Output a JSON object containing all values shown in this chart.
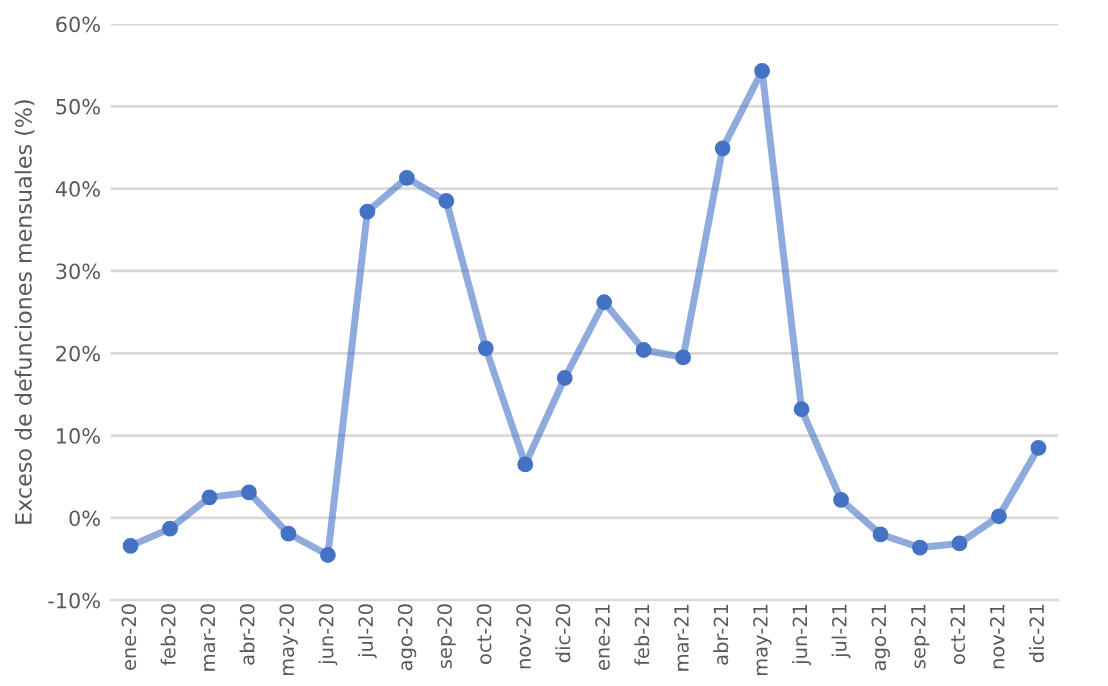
{
  "chart_data": {
    "type": "line",
    "ylabel": "Exceso de defunciones mensuales (%)",
    "categories": [
      "ene-20",
      "feb-20",
      "mar-20",
      "abr-20",
      "may-20",
      "jun-20",
      "jul-20",
      "ago-20",
      "sep-20",
      "oct-20",
      "nov-20",
      "dic-20",
      "ene-21",
      "feb-21",
      "mar-21",
      "abr-21",
      "may-21",
      "jun-21",
      "jul-21",
      "ago-21",
      "sep-21",
      "oct-21",
      "nov-21",
      "dic-21"
    ],
    "series": [
      {
        "color": "#4472c4",
        "values": [
          -3.4,
          -1.3,
          2.5,
          3.1,
          -1.9,
          -4.5,
          37.2,
          41.3,
          38.5,
          20.6,
          6.5,
          17.0,
          26.2,
          20.4,
          19.5,
          44.9,
          54.3,
          13.2,
          2.2,
          -2.0,
          -3.6,
          -3.1,
          0.2,
          8.5
        ]
      }
    ],
    "ylim": [
      -10,
      60
    ],
    "yticks": [
      {
        "value": -10,
        "label": "-10%"
      },
      {
        "value": 0,
        "label": "0%"
      },
      {
        "value": 10,
        "label": "10%"
      },
      {
        "value": 20,
        "label": "20%"
      },
      {
        "value": 30,
        "label": "30%"
      },
      {
        "value": 40,
        "label": "40%"
      },
      {
        "value": 50,
        "label": "50%"
      },
      {
        "value": 60,
        "label": "60%"
      }
    ],
    "grid": "y",
    "marker": "circle",
    "line_style": "solid"
  }
}
